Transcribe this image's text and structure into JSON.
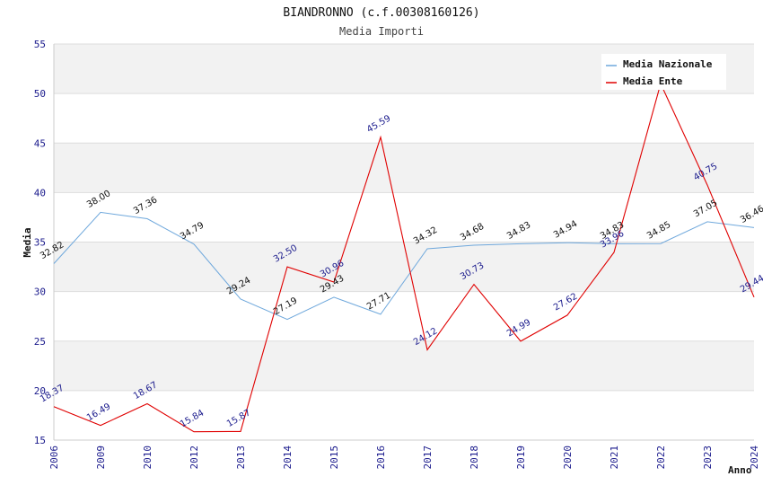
{
  "chart_data": {
    "type": "line",
    "title": "BIANDRONNO (c.f.00308160126)",
    "subtitle": "Media Importi",
    "xlabel": "Anno",
    "ylabel": "Media",
    "categories": [
      "2006",
      "2009",
      "2010",
      "2012",
      "2013",
      "2014",
      "2015",
      "2016",
      "2017",
      "2018",
      "2019",
      "2020",
      "2021",
      "2022",
      "2023",
      "2024"
    ],
    "ylim": [
      15,
      55
    ],
    "yticks": [
      15,
      20,
      25,
      30,
      35,
      40,
      45,
      50,
      55
    ],
    "series": [
      {
        "name": "Media Nazionale",
        "color": "#6fa8dc",
        "labels_shown": true,
        "values": [
          32.82,
          38.0,
          37.36,
          34.79,
          29.24,
          27.19,
          29.43,
          27.71,
          34.32,
          34.68,
          34.83,
          34.94,
          34.83,
          34.85,
          37.05,
          36.46
        ]
      },
      {
        "name": "Media Ente",
        "color": "#e00000",
        "labels_shown": true,
        "values": [
          18.37,
          16.49,
          18.67,
          15.84,
          15.87,
          32.5,
          30.96,
          45.59,
          24.12,
          30.73,
          24.99,
          27.62,
          33.96,
          51.0,
          40.75,
          29.44
        ],
        "label_hidden_index": 13
      }
    ],
    "legend_position": "top-right"
  }
}
